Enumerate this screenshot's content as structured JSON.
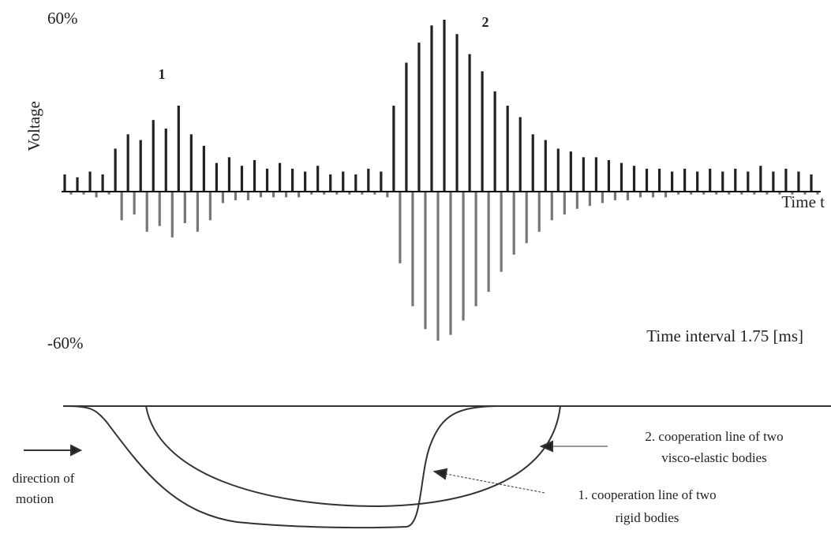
{
  "chart_data": {
    "type": "bar",
    "y_label": "Voltage",
    "x_label": "Time  t",
    "annotations": [
      "1",
      "2",
      "Time interval 1.75 [ms]"
    ],
    "values": [
      6,
      -1,
      5,
      -1,
      7,
      -2,
      6,
      -1,
      15,
      -10,
      20,
      -8,
      18,
      -14,
      25,
      -12,
      22,
      -16,
      30,
      -11,
      20,
      -14,
      16,
      -10,
      10,
      -4,
      12,
      -3,
      9,
      -3,
      11,
      -2,
      8,
      -2,
      10,
      -2,
      8,
      -2,
      7,
      -1,
      9,
      -1,
      6,
      -1,
      7,
      -1,
      6,
      -1,
      8,
      -1,
      7,
      -2,
      30,
      -25,
      45,
      -40,
      52,
      -48,
      58,
      -52,
      60,
      -50,
      55,
      -45,
      48,
      -40,
      42,
      -35,
      35,
      -28,
      30,
      -22,
      26,
      -18,
      20,
      -14,
      18,
      -10,
      15,
      -8,
      14,
      -6,
      12,
      -5,
      12,
      -4,
      11,
      -3,
      10,
      -3,
      9,
      -2,
      8,
      -2,
      8,
      -2,
      7,
      -1,
      8,
      -1,
      7,
      -1,
      8,
      -1,
      7,
      -1,
      8,
      -1,
      7,
      -1,
      9,
      -1,
      7,
      -1,
      8,
      -1,
      7,
      -1,
      6,
      -1
    ],
    "colors": [
      "#222222",
      "#777777"
    ],
    "ylim": [
      -60,
      60
    ],
    "yticks": [
      {
        "value": 60,
        "label": "60%"
      },
      {
        "value": -60,
        "label": "-60%"
      }
    ]
  },
  "diagram": {
    "direction_label": [
      "direction of",
      "motion"
    ],
    "line_2_label": [
      "2. cooperation line of two",
      "visco-elastic bodies"
    ],
    "line_1_label": [
      "1. cooperation line of two",
      "rigid bodies"
    ]
  }
}
